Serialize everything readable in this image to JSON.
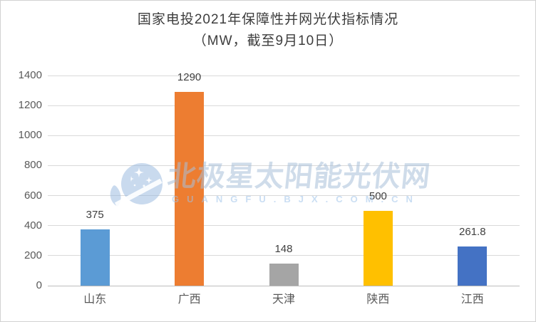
{
  "title": {
    "line1": "国家电投2021年保障性并网光伏指标情况",
    "line2": "（MW，截至9月10日）"
  },
  "watermark": {
    "logo_icon": "polaris-star-logo",
    "text": "北极星太阳能光伏网",
    "subtext": "GUANGFU.BJX.COM.CN"
  },
  "chart_data": {
    "type": "bar",
    "title": "国家电投2021年保障性并网光伏指标情况（MW，截至9月10日）",
    "categories": [
      "山东",
      "广西",
      "天津",
      "陕西",
      "江西"
    ],
    "values": [
      375,
      1290,
      148,
      500,
      261.8
    ],
    "value_labels": [
      "375",
      "1290",
      "148",
      "500",
      "261.8"
    ],
    "bar_colors": [
      "#5B9BD5",
      "#ED7D31",
      "#A5A5A5",
      "#FFC000",
      "#4472C4"
    ],
    "xlabel": "",
    "ylabel": "",
    "ylim": [
      0,
      1400
    ],
    "yticks": [
      0,
      200,
      400,
      600,
      800,
      1000,
      1200,
      1400
    ],
    "grid": true,
    "legend": false,
    "gridline_color": "#D9D9D9",
    "axis_line_color": "#BCBCBC",
    "tick_label_color": "#595959",
    "data_label_color": "#404040"
  }
}
